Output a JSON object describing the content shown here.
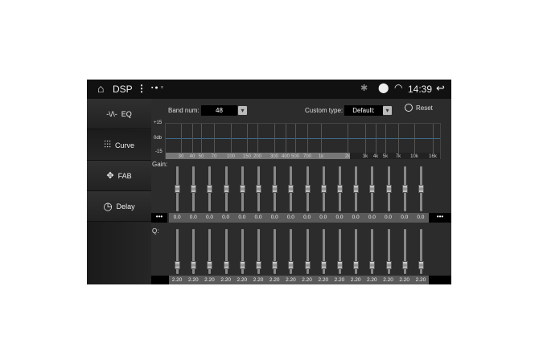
{
  "status_bar": {
    "title": "DSP",
    "menu_icon": "more-vert-icon",
    "notif_icons": [
      "image-icon",
      "shield-icon",
      "usb-icon"
    ],
    "bluetooth_icon": "bluetooth-icon",
    "location_icon": "location-icon",
    "wifi_icon": "wifi-icon",
    "time": "14:39",
    "back_icon": "back-icon"
  },
  "sidebar": {
    "items": [
      {
        "label": "EQ",
        "icon": "waveform-icon"
      },
      {
        "label": "Curve",
        "icon": "sliders-icon",
        "selected": true
      },
      {
        "label": "FAB",
        "icon": "fader-balance-icon"
      },
      {
        "label": "Delay",
        "icon": "clock-icon"
      }
    ]
  },
  "controls": {
    "band_num_label": "Band num:",
    "band_num_value": "48",
    "custom_type_label": "Custom type:",
    "custom_type_value": "Default:",
    "reset_label": "Reset"
  },
  "graph": {
    "y_labels": [
      "+15",
      "0db",
      "-15"
    ],
    "freq_labels": [
      "30",
      "40",
      "50",
      "70",
      "100",
      "150",
      "200",
      "300",
      "400",
      "500",
      "700",
      "1k",
      "2k",
      "3k",
      "4k",
      "5k",
      "7k",
      "10k",
      "16k"
    ]
  },
  "gain": {
    "label": "Gain:",
    "values": [
      "0.0",
      "0.0",
      "0.0",
      "0.0",
      "0.0",
      "0.0",
      "0.0",
      "0.0",
      "0.0",
      "0.0",
      "0.0",
      "0.0",
      "0.0",
      "0.0",
      "0.0",
      "0.0"
    ],
    "level_db": 0,
    "range_db": [
      -15,
      15
    ],
    "more_left": "•••",
    "more_right": "•••"
  },
  "q": {
    "label": "Q:",
    "values": [
      "2.20",
      "2.20",
      "2.20",
      "2.20",
      "2.20",
      "2.20",
      "2.20",
      "2.20",
      "2.20",
      "2.20",
      "2.20",
      "2.20",
      "2.20",
      "2.20",
      "2.20",
      "2.20"
    ]
  }
}
